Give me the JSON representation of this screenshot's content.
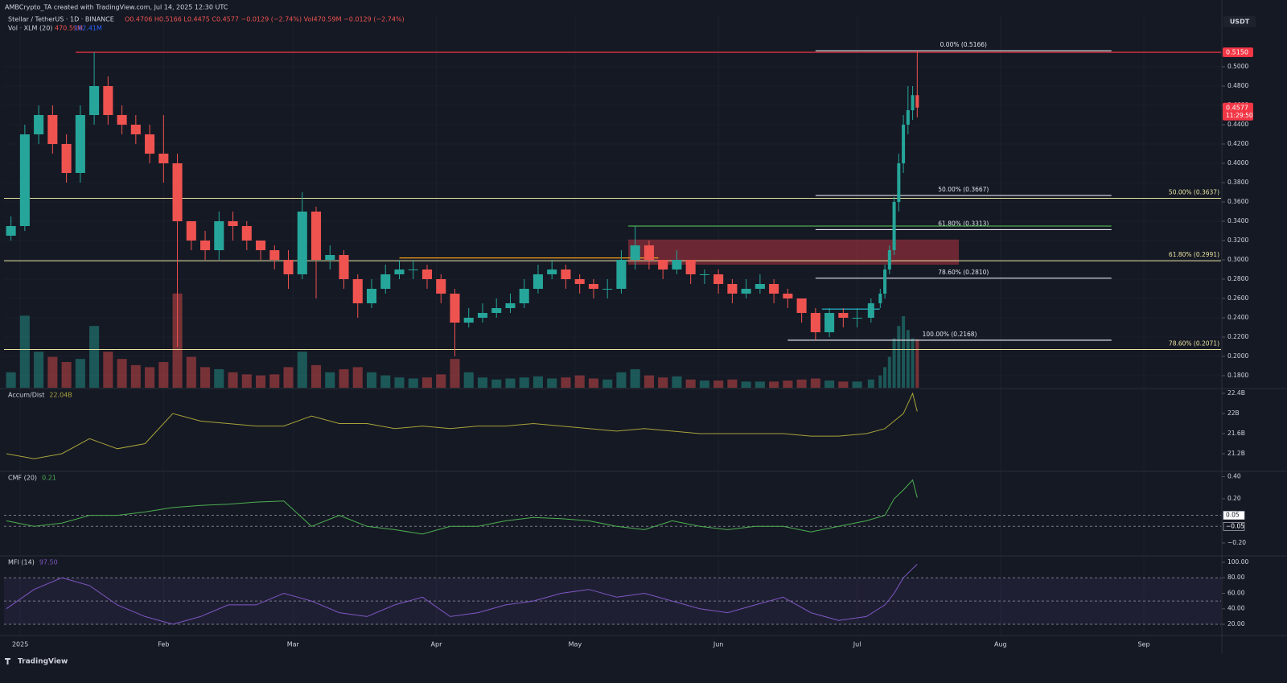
{
  "header": {
    "attribution": "AMBCrypto_TA created with TradingView.com, Jul 14, 2025 12:30 UTC",
    "symbol": "Stellar / TetherUS · 1D · BINANCE",
    "ohlc": "O0.4706 H0.5166 L0.4475 C0.4577 −0.0129 (−2.74%) Vol470.59M −0.0129 (−2.74%)",
    "volume_title": "Vol · XLM (20)",
    "volume_value": "470.59M",
    "volume_ma": "162.41M"
  },
  "footer": "TradingView",
  "chart_data": [
    {
      "type": "candlestick",
      "currency": "USDT",
      "colors": {
        "up": "#26a69a",
        "down": "#ef5350"
      },
      "grid": true,
      "xlim": [
        -3.5,
        259.7
      ],
      "xticks": [
        {
          "value": 0,
          "label": "2025"
        },
        {
          "value": 31,
          "label": "Feb"
        },
        {
          "value": 59,
          "label": "Mar"
        },
        {
          "value": 90,
          "label": "Apr"
        },
        {
          "value": 120,
          "label": "May"
        },
        {
          "value": 151,
          "label": "Jun"
        },
        {
          "value": 181,
          "label": "Jul"
        },
        {
          "value": 212,
          "label": "Aug"
        },
        {
          "value": 243,
          "label": "Sep"
        }
      ],
      "ylim": [
        0.1675,
        0.5525
      ],
      "yticks": [
        {
          "value": 0.18,
          "label": "0.1800"
        },
        {
          "value": 0.2,
          "label": "0.2000"
        },
        {
          "value": 0.22,
          "label": "0.2200"
        },
        {
          "value": 0.24,
          "label": "0.2400"
        },
        {
          "value": 0.26,
          "label": "0.2600"
        },
        {
          "value": 0.28,
          "label": "0.2800"
        },
        {
          "value": 0.3,
          "label": "0.3000"
        },
        {
          "value": 0.32,
          "label": "0.3200"
        },
        {
          "value": 0.34,
          "label": "0.3400"
        },
        {
          "value": 0.36,
          "label": "0.3600"
        },
        {
          "value": 0.38,
          "label": "0.3800"
        },
        {
          "value": 0.4,
          "label": "0.4000"
        },
        {
          "value": 0.42,
          "label": "0.4200"
        },
        {
          "value": 0.44,
          "label": "0.4400"
        },
        {
          "value": 0.46,
          "label": "0.4600"
        },
        {
          "value": 0.48,
          "label": "0.4800"
        },
        {
          "value": 0.5,
          "label": "0.5000"
        }
      ],
      "x": [
        -2,
        1,
        4,
        7,
        10,
        13,
        16,
        19,
        22,
        25,
        28,
        31,
        34,
        37,
        40,
        43,
        46,
        49,
        52,
        55,
        58,
        61,
        64,
        67,
        70,
        73,
        76,
        79,
        82,
        85,
        88,
        91,
        94,
        97,
        100,
        103,
        106,
        109,
        112,
        115,
        118,
        121,
        124,
        127,
        130,
        133,
        136,
        139,
        142,
        145,
        148,
        151,
        154,
        157,
        160,
        163,
        166,
        169,
        172,
        175,
        178,
        181,
        184,
        186,
        187,
        188,
        189,
        190,
        191,
        192,
        193,
        194
      ],
      "open": [
        0.325,
        0.335,
        0.43,
        0.45,
        0.42,
        0.39,
        0.45,
        0.48,
        0.45,
        0.44,
        0.43,
        0.41,
        0.4,
        0.34,
        0.32,
        0.31,
        0.34,
        0.335,
        0.32,
        0.31,
        0.3,
        0.285,
        0.35,
        0.3,
        0.305,
        0.28,
        0.255,
        0.27,
        0.285,
        0.29,
        0.29,
        0.28,
        0.265,
        0.235,
        0.24,
        0.245,
        0.25,
        0.255,
        0.27,
        0.285,
        0.29,
        0.28,
        0.275,
        0.27,
        0.27,
        0.3,
        0.315,
        0.3,
        0.29,
        0.3,
        0.285,
        0.285,
        0.275,
        0.265,
        0.27,
        0.275,
        0.265,
        0.26,
        0.245,
        0.225,
        0.245,
        0.24,
        0.24,
        0.255,
        0.265,
        0.29,
        0.31,
        0.36,
        0.4,
        0.44,
        0.455,
        0.4706
      ],
      "high": [
        0.345,
        0.44,
        0.46,
        0.46,
        0.43,
        0.46,
        0.515,
        0.49,
        0.46,
        0.45,
        0.44,
        0.45,
        0.41,
        0.34,
        0.33,
        0.35,
        0.35,
        0.34,
        0.32,
        0.315,
        0.31,
        0.37,
        0.355,
        0.315,
        0.31,
        0.285,
        0.28,
        0.295,
        0.3,
        0.3,
        0.295,
        0.285,
        0.27,
        0.25,
        0.255,
        0.26,
        0.265,
        0.28,
        0.295,
        0.3,
        0.295,
        0.285,
        0.28,
        0.28,
        0.31,
        0.335,
        0.32,
        0.3,
        0.31,
        0.3,
        0.29,
        0.29,
        0.28,
        0.28,
        0.285,
        0.28,
        0.27,
        0.26,
        0.25,
        0.25,
        0.25,
        0.25,
        0.26,
        0.27,
        0.295,
        0.315,
        0.365,
        0.41,
        0.45,
        0.48,
        0.48,
        0.5166
      ],
      "low": [
        0.32,
        0.33,
        0.42,
        0.41,
        0.38,
        0.38,
        0.44,
        0.44,
        0.43,
        0.42,
        0.4,
        0.38,
        0.21,
        0.31,
        0.3,
        0.3,
        0.32,
        0.31,
        0.3,
        0.29,
        0.27,
        0.28,
        0.26,
        0.29,
        0.27,
        0.24,
        0.25,
        0.265,
        0.28,
        0.28,
        0.27,
        0.255,
        0.2,
        0.23,
        0.235,
        0.24,
        0.245,
        0.25,
        0.265,
        0.28,
        0.27,
        0.265,
        0.26,
        0.26,
        0.265,
        0.29,
        0.29,
        0.28,
        0.285,
        0.275,
        0.275,
        0.265,
        0.255,
        0.26,
        0.265,
        0.255,
        0.25,
        0.235,
        0.2168,
        0.22,
        0.23,
        0.23,
        0.235,
        0.25,
        0.26,
        0.285,
        0.305,
        0.35,
        0.39,
        0.43,
        0.445,
        0.4475
      ],
      "close": [
        0.335,
        0.43,
        0.45,
        0.42,
        0.39,
        0.45,
        0.48,
        0.45,
        0.44,
        0.43,
        0.41,
        0.4,
        0.34,
        0.32,
        0.31,
        0.34,
        0.335,
        0.32,
        0.31,
        0.3,
        0.285,
        0.35,
        0.3,
        0.305,
        0.28,
        0.255,
        0.27,
        0.285,
        0.29,
        0.29,
        0.28,
        0.265,
        0.235,
        0.24,
        0.245,
        0.25,
        0.255,
        0.27,
        0.285,
        0.29,
        0.28,
        0.275,
        0.27,
        0.27,
        0.3,
        0.315,
        0.3,
        0.29,
        0.3,
        0.285,
        0.285,
        0.275,
        0.265,
        0.27,
        0.275,
        0.265,
        0.26,
        0.245,
        0.225,
        0.245,
        0.24,
        0.24,
        0.255,
        0.265,
        0.29,
        0.31,
        0.36,
        0.4,
        0.44,
        0.455,
        0.4706,
        0.4577
      ],
      "volume": {
        "ylim": [
          0,
          1000
        ],
        "values": [
          150,
          700,
          350,
          300,
          250,
          280,
          600,
          350,
          280,
          220,
          200,
          250,
          915,
          300,
          200,
          180,
          150,
          130,
          120,
          130,
          200,
          350,
          220,
          150,
          180,
          200,
          150,
          120,
          100,
          90,
          100,
          130,
          280,
          150,
          100,
          80,
          90,
          100,
          110,
          90,
          100,
          120,
          90,
          80,
          150,
          180,
          120,
          100,
          110,
          80,
          70,
          70,
          80,
          60,
          60,
          60,
          70,
          80,
          90,
          70,
          60,
          60,
          80,
          120,
          200,
          300,
          480,
          600,
          695,
          560,
          480,
          470.59
        ]
      },
      "lines": [
        {
          "value": 0.515,
          "x": [
            12,
            259.7
          ],
          "color": "#f23645"
        },
        {
          "value": 0.302,
          "x": [
            82,
            138
          ],
          "color": "#f7a21b"
        },
        {
          "value": 0.335,
          "x": [
            131.5,
            236
          ],
          "color": "#4caf50"
        },
        {
          "value": 0.249,
          "x": [
            173.4,
            185.9
          ],
          "color": "#26c6da"
        }
      ],
      "zone": {
        "from": 0.295,
        "to": 0.321,
        "x": [
          131.5,
          203
        ],
        "color": "#b2333f"
      },
      "fib_levels": {
        "color": "#e0e3eb",
        "levels": [
          {
            "label": "0.00% (0.5166)",
            "value": 0.5166,
            "x": [
              172,
              236
            ]
          },
          {
            "label": "50.00% (0.3667)",
            "value": 0.3667,
            "x": [
              172,
              236
            ]
          },
          {
            "label": "61.80% (0.3313)",
            "value": 0.3313,
            "x": [
              172,
              236
            ]
          },
          {
            "label": "78.60% (0.2810)",
            "value": 0.281,
            "x": [
              172,
              236
            ]
          },
          {
            "label": "100.00% (0.2168)",
            "value": 0.2168,
            "x": [
              166,
              236
            ]
          }
        ]
      },
      "fib_levels_2": {
        "color": "#e8e3a0",
        "levels": [
          {
            "label": "50.00% (0.3637)",
            "value": 0.3637
          },
          {
            "label": "61.80% (0.2991)",
            "value": 0.2991
          },
          {
            "label": "78.60% (0.2071)",
            "value": 0.2071
          }
        ]
      },
      "price_tags": [
        {
          "value": 0.515,
          "label": "0.5150",
          "color": "#f23645"
        },
        {
          "value": 0.4577,
          "label": "0.4577",
          "sub": "11:29:50",
          "color": "#f23645"
        }
      ]
    },
    {
      "type": "line",
      "title": "Accum/Dist",
      "value_label": "22.04B",
      "color": "#a8a23a",
      "xlim": [
        -3.5,
        259.7
      ],
      "ylim": [
        20.864,
        22.48
      ],
      "yticks": [
        {
          "value": 21.2,
          "label": "21.2B"
        },
        {
          "value": 21.6,
          "label": "21.6B"
        },
        {
          "value": 22,
          "label": "22B"
        },
        {
          "value": 22.4,
          "label": "22.4B"
        }
      ],
      "x": [
        -3,
        3,
        9,
        15,
        21,
        27,
        33,
        39,
        45,
        51,
        57,
        63,
        69,
        75,
        81,
        87,
        93,
        99,
        105,
        111,
        117,
        123,
        129,
        135,
        141,
        147,
        153,
        159,
        165,
        171,
        177,
        183,
        187,
        189,
        191,
        193,
        194
      ],
      "values": [
        21.2,
        21.1,
        21.2,
        21.5,
        21.3,
        21.4,
        22.0,
        21.85,
        21.8,
        21.75,
        21.75,
        21.95,
        21.8,
        21.8,
        21.7,
        21.75,
        21.7,
        21.75,
        21.75,
        21.8,
        21.75,
        21.7,
        21.65,
        21.7,
        21.65,
        21.6,
        21.6,
        21.6,
        21.6,
        21.55,
        21.55,
        21.6,
        21.7,
        21.85,
        22.0,
        22.4,
        22.04
      ]
    },
    {
      "type": "line",
      "title": "CMF (20)",
      "value_label": "0.21",
      "color": "#4caf50",
      "xlim": [
        -3.5,
        259.7
      ],
      "ylim": [
        -0.31,
        0.44
      ],
      "yticks": [
        {
          "value": -0.2,
          "label": "−0.20"
        },
        {
          "value": 0.2,
          "label": "0.20"
        },
        {
          "value": 0.4,
          "label": "0.40"
        }
      ],
      "levels": [
        {
          "value": 0.05,
          "label": "0.05"
        },
        {
          "value": -0.05,
          "label": "−0.05"
        }
      ],
      "x": [
        -3,
        3,
        9,
        15,
        21,
        27,
        33,
        39,
        45,
        51,
        57,
        63,
        69,
        75,
        81,
        87,
        93,
        99,
        105,
        111,
        117,
        123,
        129,
        135,
        141,
        147,
        153,
        159,
        165,
        171,
        177,
        183,
        187,
        189,
        191,
        193,
        194
      ],
      "values": [
        0.0,
        -0.05,
        -0.02,
        0.05,
        0.05,
        0.08,
        0.12,
        0.14,
        0.15,
        0.17,
        0.18,
        -0.05,
        0.05,
        -0.05,
        -0.08,
        -0.12,
        -0.05,
        -0.05,
        0.0,
        0.03,
        0.02,
        0.0,
        -0.05,
        -0.08,
        0.0,
        -0.05,
        -0.08,
        -0.05,
        -0.05,
        -0.1,
        -0.05,
        0.0,
        0.05,
        0.2,
        0.28,
        0.37,
        0.21
      ]
    },
    {
      "type": "line",
      "title": "MFI (14)",
      "value_label": "97.50",
      "color": "#7e57c2",
      "xlim": [
        -3.5,
        259.7
      ],
      "ylim": [
        5.45,
        107.27
      ],
      "yticks": [
        {
          "value": 20,
          "label": "20.00"
        },
        {
          "value": 40,
          "label": "40.00"
        },
        {
          "value": 60,
          "label": "60.00"
        },
        {
          "value": 80,
          "label": "80.00"
        },
        {
          "value": 100,
          "label": "100.00"
        }
      ],
      "band": [
        20,
        80
      ],
      "levels": [
        80,
        50,
        20
      ],
      "x": [
        -3,
        3,
        9,
        15,
        21,
        27,
        33,
        39,
        45,
        51,
        57,
        63,
        69,
        75,
        81,
        87,
        93,
        99,
        105,
        111,
        117,
        123,
        129,
        135,
        141,
        147,
        153,
        159,
        165,
        171,
        177,
        183,
        187,
        189,
        191,
        193,
        194
      ],
      "values": [
        40,
        65,
        80,
        70,
        45,
        30,
        20,
        30,
        45,
        45,
        60,
        50,
        35,
        30,
        45,
        55,
        30,
        35,
        45,
        50,
        60,
        65,
        55,
        60,
        50,
        40,
        35,
        45,
        55,
        35,
        25,
        30,
        45,
        60,
        80,
        92,
        97.5
      ]
    }
  ]
}
